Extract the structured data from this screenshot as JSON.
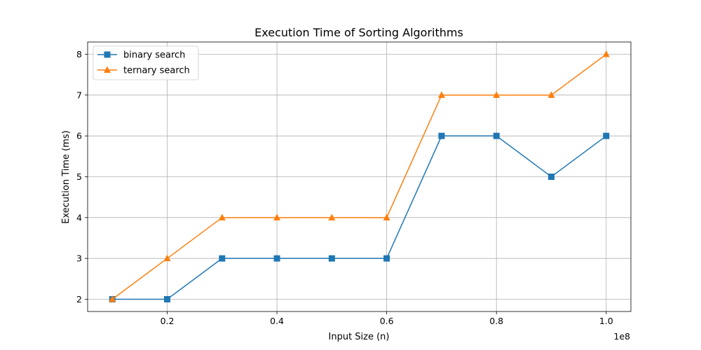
{
  "chart_data": {
    "type": "line",
    "title": "Execution Time of Sorting Algorithms",
    "xlabel": "Input Size (n)",
    "ylabel": "Execution Time (ms)",
    "x_offset_label": "1e8",
    "x": [
      10000000,
      20000000,
      30000000,
      40000000,
      50000000,
      60000000,
      70000000,
      80000000,
      90000000,
      100000000
    ],
    "xlim": [
      5500000,
      104500000
    ],
    "ylim": [
      1.7,
      8.3
    ],
    "x_ticks": [
      20000000,
      40000000,
      60000000,
      80000000,
      100000000
    ],
    "x_tick_labels": [
      "0.2",
      "0.4",
      "0.6",
      "0.8",
      "1.0"
    ],
    "y_ticks": [
      2,
      3,
      4,
      5,
      6,
      7,
      8
    ],
    "y_tick_labels": [
      "2",
      "3",
      "4",
      "5",
      "6",
      "7",
      "8"
    ],
    "grid": true,
    "legend_position": "top-left",
    "series": [
      {
        "name": "binary search",
        "values": [
          2,
          2,
          3,
          3,
          3,
          3,
          6,
          6,
          5,
          6
        ],
        "color": "#1f77b4",
        "marker": "square"
      },
      {
        "name": "ternary search",
        "values": [
          2,
          3,
          4,
          4,
          4,
          4,
          7,
          7,
          7,
          8
        ],
        "color": "#ff7f0e",
        "marker": "triangle"
      }
    ]
  }
}
